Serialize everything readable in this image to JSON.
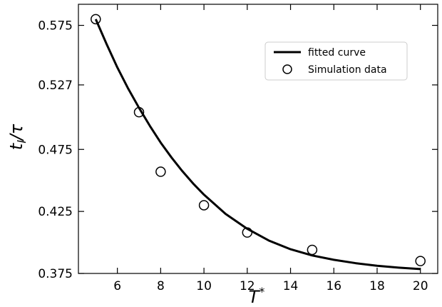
{
  "chart_data": {
    "type": "scatter",
    "xlabel": "T*",
    "ylabel": "t_l/τ",
    "xlim": [
      4.2,
      20.8
    ],
    "ylim": [
      0.375,
      0.592
    ],
    "xticks": [
      6,
      8,
      10,
      12,
      14,
      16,
      18,
      20
    ],
    "yticks": [
      0.375,
      0.425,
      0.475,
      0.527,
      0.575
    ],
    "ytick_labels": [
      "0.375",
      "0.425",
      "0.475",
      "0.527",
      "0.575"
    ],
    "grid": false,
    "legend_position": "top-right",
    "series": [
      {
        "name": "fitted curve",
        "kind": "line",
        "color": "#000000",
        "x": [
          5,
          5.5,
          6,
          6.5,
          7,
          7.5,
          8,
          8.5,
          9,
          9.5,
          10,
          11,
          12,
          13,
          14,
          15,
          16,
          17,
          18,
          19,
          20
        ],
        "y": [
          0.58,
          0.56,
          0.541,
          0.524,
          0.5085,
          0.494,
          0.4805,
          0.4685,
          0.4575,
          0.4475,
          0.4385,
          0.423,
          0.411,
          0.4015,
          0.3945,
          0.3895,
          0.386,
          0.3833,
          0.3812,
          0.3797,
          0.3785
        ]
      },
      {
        "name": "Simulation data",
        "kind": "scatter",
        "marker": "open-circle",
        "color": "#000000",
        "x": [
          5,
          7,
          8,
          10,
          12,
          15,
          20
        ],
        "y": [
          0.58,
          0.505,
          0.457,
          0.43,
          0.408,
          0.394,
          0.385
        ]
      }
    ]
  }
}
